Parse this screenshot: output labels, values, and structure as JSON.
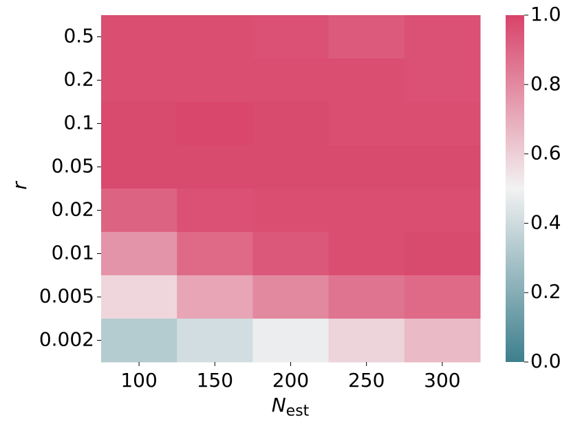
{
  "chart_data": {
    "type": "heatmap",
    "xlabel": "N",
    "xlabel_sub": "est",
    "ylabel": "r",
    "x_categories": [
      "100",
      "150",
      "200",
      "250",
      "300"
    ],
    "y_categories": [
      "0.5",
      "0.2",
      "0.1",
      "0.05",
      "0.02",
      "0.01",
      "0.005",
      "0.002"
    ],
    "values": [
      [
        0.97,
        0.97,
        0.96,
        0.93,
        0.96
      ],
      [
        0.97,
        0.97,
        0.97,
        0.97,
        0.96
      ],
      [
        0.98,
        0.99,
        0.98,
        0.97,
        0.97
      ],
      [
        0.98,
        0.98,
        0.98,
        0.98,
        0.98
      ],
      [
        0.91,
        0.96,
        0.97,
        0.97,
        0.97
      ],
      [
        0.77,
        0.89,
        0.94,
        0.97,
        0.98
      ],
      [
        0.58,
        0.72,
        0.8,
        0.86,
        0.89
      ],
      [
        0.33,
        0.41,
        0.48,
        0.59,
        0.66
      ]
    ],
    "colormap": [
      "#3d7f8d",
      "#f2f2f2",
      "#d8436a"
    ],
    "clim": [
      0,
      1
    ],
    "cticks": [
      {
        "value": 0,
        "label": "0.0"
      },
      0.2,
      0.4,
      0.6,
      0.8,
      {
        "value": 1,
        "label": "1.0"
      }
    ]
  }
}
